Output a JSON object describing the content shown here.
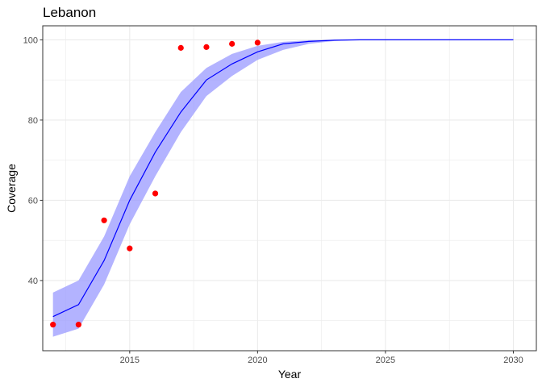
{
  "chart_data": {
    "type": "line",
    "title": "Lebanon",
    "xlabel": "Year",
    "ylabel": "Coverage",
    "xlim": [
      2011.6,
      2030.9
    ],
    "ylim": [
      22.5,
      103.5
    ],
    "x_ticks": [
      2015,
      2020,
      2025,
      2030
    ],
    "x_minor": [
      2012.5,
      2017.5,
      2022.5,
      2027.5
    ],
    "y_ticks": [
      40,
      60,
      80,
      100
    ],
    "y_minor": [
      30,
      50,
      70,
      90
    ],
    "grid": true,
    "legend": "none",
    "colors": {
      "line": "#0000ff",
      "band": "#9999ff",
      "points": "#ff0000",
      "grid": "#ebebeb",
      "panel_border": "#333333"
    },
    "series": [
      {
        "kind": "fitted_line_with_interval",
        "x": [
          2012,
          2013,
          2014,
          2015,
          2016,
          2017,
          2018,
          2019,
          2020,
          2021,
          2022,
          2023,
          2024,
          2025,
          2026,
          2027,
          2028,
          2029,
          2030
        ],
        "y": [
          31,
          34,
          45,
          60,
          72,
          82,
          90,
          94,
          97,
          99,
          99.6,
          99.9,
          100,
          100,
          100,
          100,
          100,
          100,
          100
        ],
        "lower": [
          26,
          28,
          39,
          54,
          66,
          77,
          86,
          91,
          95,
          97.5,
          99,
          99.7,
          100,
          100,
          100,
          100,
          100,
          100,
          100
        ],
        "upper": [
          37,
          40,
          51,
          66,
          77,
          87,
          93,
          96.5,
          98.5,
          99.5,
          99.9,
          100,
          100,
          100,
          100,
          100,
          100,
          100,
          100
        ]
      },
      {
        "kind": "observed_points",
        "x": [
          2012,
          2013,
          2014,
          2015,
          2016,
          2017,
          2018,
          2019,
          2020
        ],
        "y": [
          29,
          29,
          55,
          48,
          61.7,
          98,
          98.2,
          99,
          99.3
        ]
      }
    ]
  }
}
